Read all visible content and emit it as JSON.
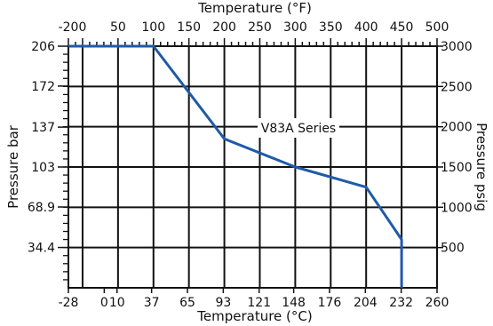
{
  "chart_data": {
    "type": "line",
    "title": "",
    "series_label": "V83A Series",
    "axes": {
      "top": {
        "title": "Temperature  (°F)",
        "range": [
          -20,
          500
        ],
        "ticks": [
          -20,
          0,
          50,
          100,
          150,
          200,
          250,
          300,
          350,
          400,
          450,
          500
        ],
        "tick_labels": [
          "-20",
          "0",
          "50",
          "100",
          "150",
          "200",
          "250",
          "300",
          "350",
          "400",
          "450",
          "500"
        ]
      },
      "bottom": {
        "title": "Temperature  (°C)",
        "range": [
          -28,
          260
        ],
        "ticks": [
          -28,
          0,
          10,
          37,
          65,
          93,
          121,
          148,
          176,
          204,
          232,
          260
        ],
        "tick_labels": [
          "-28",
          "0",
          "10",
          "37",
          "65",
          "93",
          "121",
          "148",
          "176",
          "204",
          "232",
          "260"
        ]
      },
      "left": {
        "title": "Pressure bar",
        "range": [
          0,
          206
        ],
        "ticks": [
          34.4,
          68.9,
          103,
          137,
          172,
          206
        ],
        "tick_labels": [
          "34.4",
          "68.9",
          "103",
          "137",
          "172",
          "206"
        ]
      },
      "right": {
        "title": "Pressure psig",
        "range": [
          0,
          3000
        ],
        "ticks": [
          500,
          1000,
          1500,
          2000,
          2500,
          3000
        ],
        "tick_labels": [
          "500",
          "1000",
          "1500",
          "2000",
          "2500",
          "3000"
        ]
      }
    },
    "grid": true,
    "series": [
      {
        "name": "V83A Series",
        "x_unit": "°F",
        "y_unit": "psig",
        "x": [
          -20,
          100,
          200,
          300,
          400,
          450,
          450
        ],
        "y": [
          3000,
          3000,
          1850,
          1500,
          1250,
          600,
          0
        ]
      }
    ],
    "line_color": "#1f5aa8"
  }
}
